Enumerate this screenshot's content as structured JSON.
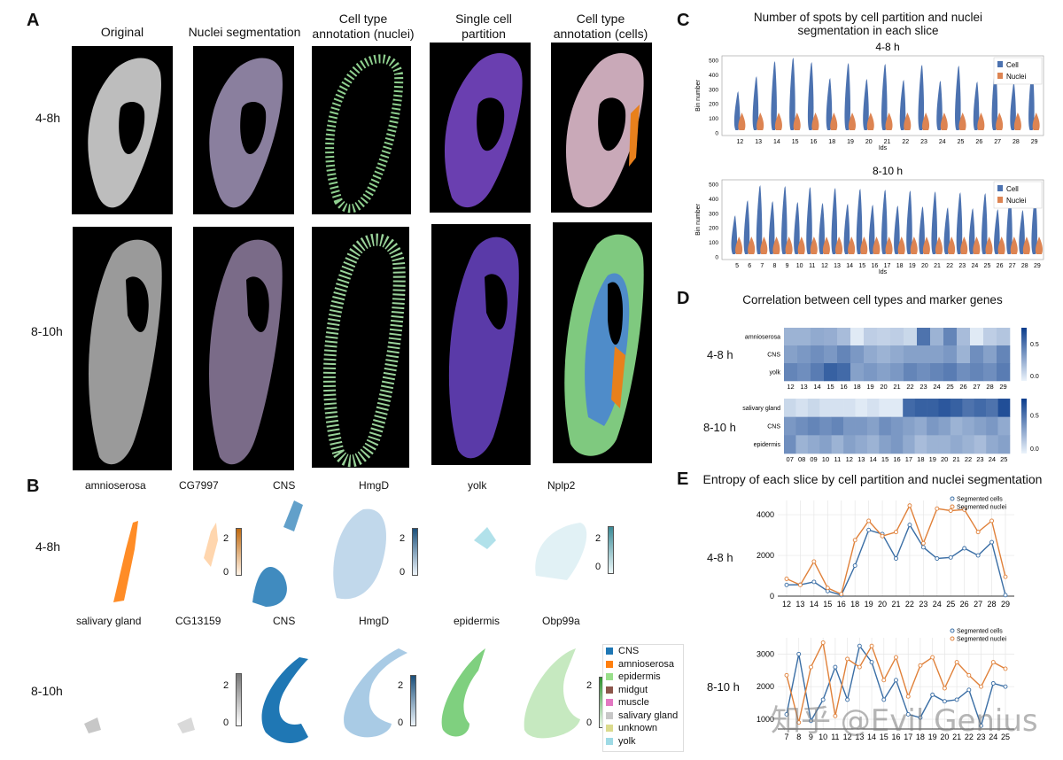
{
  "panels": {
    "A": "A",
    "B": "B",
    "C": "C",
    "D": "D",
    "E": "E"
  },
  "panelA": {
    "columns": [
      "Original",
      "Nuclei segmentation",
      "Cell type\nannotation (nuclei)",
      "Single cell\npartition",
      "Cell type\nannotation (cells)"
    ],
    "rows": [
      "4-8h",
      "8-10h"
    ]
  },
  "panelB": {
    "row1_label": "4-8h",
    "row2_label": "8-10h",
    "row1_titles": [
      "amnioserosa",
      "CG7997",
      "CNS",
      "HmgD",
      "yolk",
      "Nplp2"
    ],
    "row2_titles": [
      "salivary gland",
      "CG13159",
      "CNS",
      "HmgD",
      "epidermis",
      "Obp99a"
    ],
    "colorbar_ticks": [
      "2",
      "0"
    ],
    "legend": [
      {
        "label": "CNS",
        "color": "#1f77b4"
      },
      {
        "label": "amnioserosa",
        "color": "#ff7f0e"
      },
      {
        "label": "epidermis",
        "color": "#98df8a"
      },
      {
        "label": "midgut",
        "color": "#8c564b"
      },
      {
        "label": "muscle",
        "color": "#e377c2"
      },
      {
        "label": "salivary gland",
        "color": "#c7c7c7"
      },
      {
        "label": "unknown",
        "color": "#dbdb8d"
      },
      {
        "label": "yolk",
        "color": "#9edae5"
      }
    ]
  },
  "panelC": {
    "title": "Number of spots by cell partition and nuclei segmentation in each slice",
    "colors": {
      "cell": "#4c72b0",
      "nuclei": "#dd8452"
    },
    "charts": [
      {
        "subtitle": "4-8 h",
        "ylabel": "Bin number",
        "xlabel": "Ids",
        "yticks": [
          "500",
          "400",
          "300",
          "200",
          "100",
          "0"
        ],
        "legend": [
          "Cell",
          "Nuclei"
        ],
        "x": [
          "12",
          "13",
          "14",
          "15",
          "16",
          "18",
          "19",
          "20",
          "21",
          "22",
          "23",
          "24",
          "25",
          "26",
          "27",
          "28",
          "29"
        ]
      },
      {
        "subtitle": "8-10 h",
        "ylabel": "Bin number",
        "xlabel": "Ids",
        "yticks": [
          "500",
          "400",
          "300",
          "200",
          "100",
          "0"
        ],
        "legend": [
          "Cell",
          "Nuclei"
        ],
        "x": [
          "5",
          "6",
          "7",
          "8",
          "9",
          "10",
          "11",
          "12",
          "13",
          "14",
          "15",
          "16",
          "17",
          "18",
          "19",
          "20",
          "21",
          "22",
          "23",
          "24",
          "25",
          "26",
          "27",
          "28",
          "29"
        ]
      }
    ]
  },
  "panelD": {
    "title": "Correlation between cell types and marker genes",
    "scale_ticks": [
      "0.5",
      "0.0"
    ],
    "heatmaps": [
      {
        "label": "4-8 h",
        "rows": [
          "amnioserosa",
          "CNS",
          "yolk"
        ],
        "x": [
          "12",
          "13",
          "14",
          "15",
          "16",
          "18",
          "19",
          "20",
          "21",
          "22",
          "23",
          "24",
          "25",
          "26",
          "27",
          "28",
          "29"
        ],
        "values": [
          [
            0.35,
            0.35,
            0.4,
            0.38,
            0.3,
            0.05,
            0.2,
            0.18,
            0.2,
            0.15,
            0.7,
            0.35,
            0.6,
            0.3,
            0.05,
            0.2,
            0.25
          ],
          [
            0.45,
            0.5,
            0.55,
            0.5,
            0.6,
            0.5,
            0.4,
            0.35,
            0.4,
            0.45,
            0.45,
            0.45,
            0.5,
            0.35,
            0.55,
            0.45,
            0.6
          ],
          [
            0.6,
            0.55,
            0.65,
            0.8,
            0.75,
            0.45,
            0.5,
            0.45,
            0.5,
            0.6,
            0.55,
            0.6,
            0.65,
            0.55,
            0.6,
            0.55,
            0.65
          ]
        ]
      },
      {
        "label": "8-10 h",
        "rows": [
          "salivary gland",
          "CNS",
          "epidermis"
        ],
        "x": [
          "07",
          "08",
          "09",
          "10",
          "11",
          "12",
          "13",
          "14",
          "15",
          "16",
          "17",
          "18",
          "19",
          "20",
          "21",
          "22",
          "23",
          "24",
          "25"
        ],
        "values": [
          [
            0.15,
            0.1,
            0.15,
            0.1,
            0.1,
            0.1,
            0.05,
            0.1,
            0.05,
            0.05,
            0.75,
            0.8,
            0.8,
            0.85,
            0.8,
            0.7,
            0.75,
            0.7,
            0.9
          ],
          [
            0.5,
            0.55,
            0.6,
            0.55,
            0.6,
            0.5,
            0.5,
            0.45,
            0.55,
            0.5,
            0.45,
            0.4,
            0.5,
            0.45,
            0.35,
            0.4,
            0.45,
            0.5,
            0.4
          ],
          [
            0.55,
            0.35,
            0.4,
            0.45,
            0.35,
            0.45,
            0.4,
            0.35,
            0.45,
            0.5,
            0.4,
            0.3,
            0.35,
            0.35,
            0.4,
            0.35,
            0.3,
            0.4,
            0.45
          ]
        ]
      }
    ]
  },
  "panelE": {
    "title": "Entropy of each slice by cell partition and nuclei segmentation",
    "colors": {
      "cells": "#3a6ea5",
      "nuclei": "#e0813a"
    },
    "legend": [
      "Segmented cells",
      "Segmented nuclei"
    ]
  },
  "chart_data": [
    {
      "type": "line",
      "title": "Entropy of each slice by cell partition and nuclei segmentation",
      "subtitle": "4-8 h",
      "categories": [
        "12",
        "13",
        "14",
        "15",
        "16",
        "18",
        "19",
        "20",
        "21",
        "22",
        "23",
        "24",
        "25",
        "26",
        "27",
        "28",
        "29"
      ],
      "yticks": [
        "4000",
        "2000",
        "0"
      ],
      "ylim": [
        0,
        4700
      ],
      "series": [
        {
          "name": "Segmented cells",
          "values": [
            550,
            560,
            700,
            250,
            50,
            1500,
            3250,
            3050,
            1850,
            3500,
            2400,
            1850,
            1900,
            2350,
            2000,
            2650,
            50
          ]
        },
        {
          "name": "Segmented nuclei",
          "values": [
            850,
            550,
            1700,
            400,
            100,
            2750,
            3700,
            2950,
            3150,
            4450,
            2600,
            4300,
            4200,
            4250,
            3150,
            3700,
            950
          ]
        }
      ]
    },
    {
      "type": "line",
      "subtitle": "8-10 h",
      "categories": [
        "7",
        "8",
        "9",
        "10",
        "11",
        "12",
        "13",
        "14",
        "15",
        "16",
        "17",
        "18",
        "19",
        "20",
        "21",
        "22",
        "23",
        "24",
        "25"
      ],
      "yticks": [
        "3000",
        "2000",
        "1000"
      ],
      "ylim": [
        700,
        3500
      ],
      "series": [
        {
          "name": "Segmented cells",
          "values": [
            1150,
            3000,
            950,
            1600,
            2600,
            1600,
            3250,
            2750,
            1600,
            2200,
            1150,
            1050,
            1750,
            1550,
            1600,
            1900,
            800,
            2100,
            2000
          ]
        },
        {
          "name": "Segmented nuclei",
          "values": [
            2350,
            900,
            2600,
            3350,
            1100,
            2850,
            2600,
            3250,
            2200,
            2900,
            1700,
            2650,
            2900,
            1950,
            2750,
            2350,
            2000,
            2750,
            2550
          ]
        }
      ]
    }
  ],
  "watermark": "知乎 @Evil Genius"
}
